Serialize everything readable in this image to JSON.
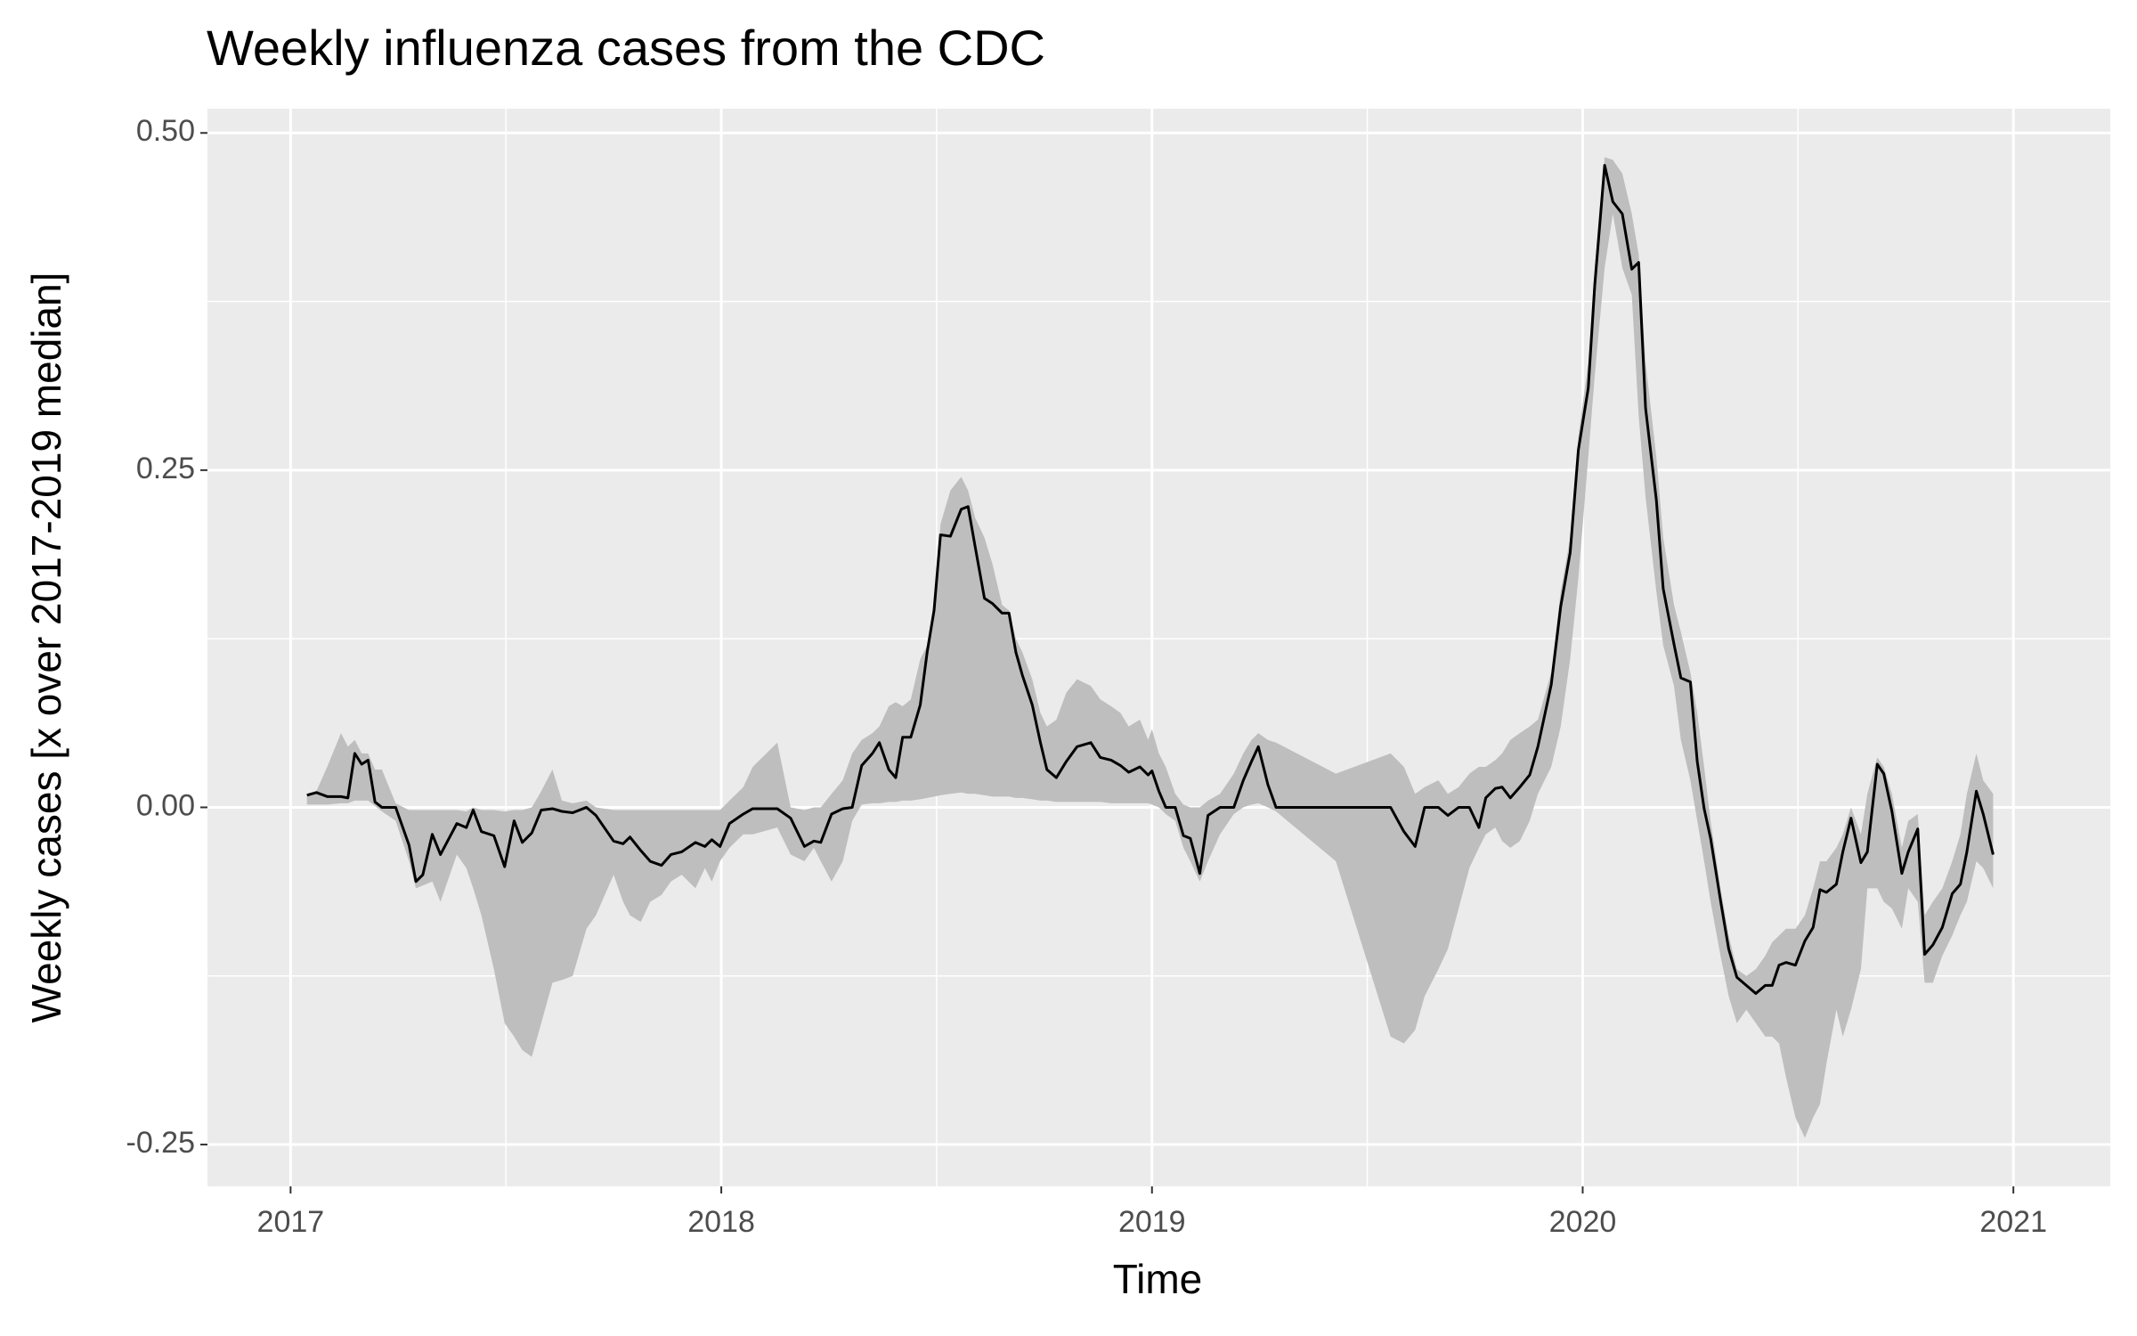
{
  "chart_data": {
    "type": "line",
    "title": "Weekly influenza cases from the CDC",
    "x_label": "Time",
    "y_label": "Weekly cases [x over 2017-2019 median]",
    "xlim": [
      2016.807,
      2021.225
    ],
    "ylim": [
      -0.281,
      0.518
    ],
    "xticks": [
      2017,
      2018,
      2019,
      2020,
      2021
    ],
    "yticks": [
      {
        "value": -0.25,
        "label": "-0.25"
      },
      {
        "value": 0,
        "label": "0.00"
      },
      {
        "value": 0.25,
        "label": "0.25"
      },
      {
        "value": 0.5,
        "label": "0.50"
      }
    ],
    "x_minor_grid": [
      2017.5,
      2018.5,
      2019.5,
      2020.5
    ],
    "y_minor_grid": [
      -0.125,
      0.125,
      0.375
    ],
    "grid": true,
    "x": [
      2017.038,
      2017.06,
      2017.085,
      2017.117,
      2017.133,
      2017.149,
      2017.165,
      2017.18,
      2017.196,
      2017.212,
      2017.244,
      2017.275,
      2017.291,
      2017.307,
      2017.329,
      2017.348,
      2017.386,
      2017.408,
      2017.424,
      2017.443,
      2017.472,
      2017.497,
      2017.519,
      2017.538,
      2017.56,
      2017.582,
      2017.608,
      2017.63,
      2017.655,
      2017.687,
      2017.709,
      2017.75,
      2017.772,
      2017.788,
      2017.813,
      2017.835,
      2017.861,
      2017.883,
      2017.908,
      2017.94,
      2017.962,
      2017.978,
      2017.997,
      2018.019,
      2018.051,
      2018.073,
      2018.13,
      2018.161,
      2018.193,
      2018.215,
      2018.231,
      2018.256,
      2018.282,
      2018.304,
      2018.326,
      2018.351,
      2018.367,
      2018.389,
      2018.405,
      2018.421,
      2018.44,
      2018.462,
      2018.478,
      2018.494,
      2018.509,
      2018.532,
      2018.557,
      2018.573,
      2018.589,
      2018.611,
      2018.63,
      2018.652,
      2018.668,
      2018.684,
      2018.699,
      2018.722,
      2018.741,
      2018.756,
      2018.778,
      2018.801,
      2018.826,
      2018.858,
      2018.88,
      2018.905,
      2018.927,
      2018.946,
      2018.972,
      2018.991,
      2019.0,
      2019.016,
      2019.032,
      2019.054,
      2019.073,
      2019.089,
      2019.111,
      2019.13,
      2019.158,
      2019.19,
      2019.212,
      2019.231,
      2019.247,
      2019.269,
      2019.288,
      2019.427,
      2019.554,
      2019.585,
      2019.611,
      2019.633,
      2019.665,
      2019.687,
      2019.712,
      2019.737,
      2019.759,
      2019.775,
      2019.797,
      2019.813,
      2019.832,
      2019.854,
      2019.877,
      2019.896,
      2019.927,
      2019.949,
      2019.971,
      2019.99,
      2020.013,
      2020.028,
      2020.051,
      2020.07,
      2020.092,
      2020.114,
      2020.13,
      2020.146,
      2020.171,
      2020.187,
      2020.212,
      2020.228,
      2020.25,
      2020.266,
      2020.282,
      2020.297,
      2020.32,
      2020.339,
      2020.358,
      2020.38,
      2020.402,
      2020.424,
      2020.44,
      2020.456,
      2020.472,
      2020.494,
      2020.516,
      2020.535,
      2020.551,
      2020.566,
      2020.589,
      2020.604,
      2020.623,
      2020.646,
      2020.661,
      2020.684,
      2020.699,
      2020.718,
      2020.741,
      2020.756,
      2020.778,
      2020.794,
      2020.813,
      2020.835,
      2020.858,
      2020.877,
      2020.892,
      2020.914,
      2020.93,
      2020.953
    ],
    "series": [
      {
        "color": "#000000",
        "values": [
          0.009,
          0.011,
          0.008,
          0.008,
          0.007,
          0.04,
          0.032,
          0.035,
          0.004,
          0,
          0,
          -0.028,
          -0.055,
          -0.05,
          -0.02,
          -0.035,
          -0.012,
          -0.015,
          -0.002,
          -0.018,
          -0.021,
          -0.044,
          -0.01,
          -0.026,
          -0.019,
          -0.002,
          -0.001,
          -0.003,
          -0.004,
          0,
          -0.006,
          -0.025,
          -0.027,
          -0.022,
          -0.032,
          -0.04,
          -0.043,
          -0.035,
          -0.033,
          -0.026,
          -0.029,
          -0.024,
          -0.029,
          -0.012,
          -0.005,
          -0.001,
          -0.001,
          -0.008,
          -0.029,
          -0.025,
          -0.026,
          -0.005,
          -0.001,
          0,
          0.031,
          0.04,
          0.048,
          0.028,
          0.022,
          0.052,
          0.052,
          0.076,
          0.115,
          0.146,
          0.202,
          0.201,
          0.221,
          0.223,
          0.194,
          0.155,
          0.151,
          0.144,
          0.144,
          0.115,
          0.098,
          0.076,
          0.048,
          0.028,
          0.022,
          0.034,
          0.045,
          0.048,
          0.037,
          0.035,
          0.031,
          0.026,
          0.03,
          0.024,
          0.027,
          0.012,
          0,
          0,
          -0.021,
          -0.023,
          -0.049,
          -0.006,
          0,
          0,
          0.02,
          0.034,
          0.045,
          0.017,
          0,
          0,
          0,
          -0.018,
          -0.029,
          0,
          0,
          -0.006,
          0,
          0,
          -0.015,
          0.007,
          0.014,
          0.015,
          0.007,
          0.015,
          0.024,
          0.045,
          0.091,
          0.149,
          0.189,
          0.265,
          0.311,
          0.387,
          0.476,
          0.449,
          0.44,
          0.399,
          0.404,
          0.296,
          0.228,
          0.162,
          0.121,
          0.096,
          0.093,
          0.034,
          -0.001,
          -0.023,
          -0.069,
          -0.105,
          -0.126,
          -0.132,
          -0.138,
          -0.132,
          -0.132,
          -0.117,
          -0.115,
          -0.117,
          -0.099,
          -0.089,
          -0.061,
          -0.063,
          -0.057,
          -0.033,
          -0.008,
          -0.041,
          -0.033,
          0.032,
          0.025,
          -0.003,
          -0.049,
          -0.033,
          -0.016,
          -0.109,
          -0.102,
          -0.089,
          -0.064,
          -0.057,
          -0.033,
          0.012,
          -0.005,
          -0.035
        ]
      }
    ],
    "band": {
      "color": "#bebebe",
      "lower": [
        0.002,
        0.002,
        0.002,
        0.003,
        0.003,
        0.005,
        0.005,
        0.005,
        0.001,
        -0.003,
        -0.01,
        -0.04,
        -0.06,
        -0.058,
        -0.055,
        -0.07,
        -0.035,
        -0.045,
        -0.06,
        -0.08,
        -0.12,
        -0.16,
        -0.17,
        -0.18,
        -0.185,
        -0.16,
        -0.13,
        -0.128,
        -0.125,
        -0.09,
        -0.08,
        -0.05,
        -0.07,
        -0.08,
        -0.085,
        -0.07,
        -0.065,
        -0.055,
        -0.05,
        -0.06,
        -0.045,
        -0.055,
        -0.04,
        -0.03,
        -0.02,
        -0.02,
        -0.015,
        -0.035,
        -0.04,
        -0.03,
        -0.04,
        -0.055,
        -0.04,
        -0.01,
        0.002,
        0.003,
        0.003,
        0.004,
        0.004,
        0.005,
        0.005,
        0.006,
        0.007,
        0.008,
        0.009,
        0.01,
        0.011,
        0.01,
        0.01,
        0.009,
        0.008,
        0.008,
        0.008,
        0.007,
        0.007,
        0.006,
        0.005,
        0.005,
        0.004,
        0.004,
        0.004,
        0.004,
        0.004,
        0.003,
        0.003,
        0.003,
        0.003,
        0.003,
        0.002,
        0,
        -0.005,
        -0.01,
        -0.03,
        -0.04,
        -0.055,
        -0.04,
        -0.02,
        -0.005,
        0,
        0.002,
        0.003,
        0,
        -0.003,
        -0.04,
        -0.17,
        -0.175,
        -0.165,
        -0.14,
        -0.12,
        -0.105,
        -0.075,
        -0.045,
        -0.03,
        -0.02,
        -0.015,
        -0.025,
        -0.03,
        -0.025,
        -0.01,
        0.01,
        0.03,
        0.06,
        0.11,
        0.17,
        0.26,
        0.32,
        0.4,
        0.44,
        0.4,
        0.38,
        0.29,
        0.23,
        0.16,
        0.12,
        0.09,
        0.05,
        0.02,
        -0.01,
        -0.04,
        -0.07,
        -0.11,
        -0.14,
        -0.16,
        -0.15,
        -0.16,
        -0.17,
        -0.17,
        -0.175,
        -0.2,
        -0.23,
        -0.245,
        -0.23,
        -0.22,
        -0.19,
        -0.15,
        -0.17,
        -0.15,
        -0.12,
        -0.06,
        -0.06,
        -0.07,
        -0.075,
        -0.09,
        -0.06,
        -0.07,
        -0.13,
        -0.13,
        -0.11,
        -0.095,
        -0.08,
        -0.07,
        -0.04,
        -0.045,
        -0.06
      ],
      "upper": [
        0.01,
        0.012,
        0.03,
        0.055,
        0.045,
        0.05,
        0.04,
        0.04,
        0.028,
        0.028,
        0.003,
        -0.002,
        -0.002,
        -0.002,
        -0.002,
        -0.002,
        -0.002,
        -0.003,
        0,
        -0.002,
        -0.002,
        -0.003,
        -0.002,
        -0.002,
        0,
        0.012,
        0.028,
        0.005,
        0.003,
        0.005,
        0,
        -0.002,
        -0.002,
        -0.002,
        -0.002,
        -0.002,
        -0.002,
        -0.002,
        -0.002,
        -0.002,
        -0.002,
        -0.002,
        -0.002,
        0.005,
        0.015,
        0.03,
        0.048,
        0,
        -0.002,
        0,
        0,
        0.01,
        0.02,
        0.04,
        0.05,
        0.055,
        0.06,
        0.075,
        0.078,
        0.075,
        0.08,
        0.11,
        0.12,
        0.15,
        0.21,
        0.235,
        0.245,
        0.235,
        0.215,
        0.2,
        0.18,
        0.15,
        0.146,
        0.125,
        0.115,
        0.095,
        0.07,
        0.06,
        0.065,
        0.085,
        0.095,
        0.09,
        0.08,
        0.075,
        0.07,
        0.06,
        0.065,
        0.05,
        0.058,
        0.04,
        0.03,
        0.01,
        0.002,
        0,
        0,
        0.005,
        0.01,
        0.025,
        0.04,
        0.05,
        0.055,
        0.05,
        0.048,
        0.025,
        0.04,
        0.03,
        0.01,
        0.015,
        0.02,
        0.01,
        0.015,
        0.025,
        0.03,
        0.03,
        0.035,
        0.04,
        0.05,
        0.055,
        0.06,
        0.065,
        0.1,
        0.16,
        0.2,
        0.275,
        0.33,
        0.4,
        0.482,
        0.48,
        0.47,
        0.44,
        0.41,
        0.33,
        0.26,
        0.2,
        0.15,
        0.13,
        0.1,
        0.07,
        0.03,
        -0.01,
        -0.06,
        -0.095,
        -0.12,
        -0.125,
        -0.12,
        -0.11,
        -0.1,
        -0.095,
        -0.09,
        -0.09,
        -0.08,
        -0.06,
        -0.04,
        -0.04,
        -0.03,
        -0.02,
        0,
        -0.02,
        0.01,
        0.037,
        0.03,
        0.01,
        -0.03,
        -0.01,
        -0.005,
        -0.08,
        -0.07,
        -0.06,
        -0.04,
        -0.02,
        0.01,
        0.04,
        0.02,
        0.01
      ]
    }
  }
}
